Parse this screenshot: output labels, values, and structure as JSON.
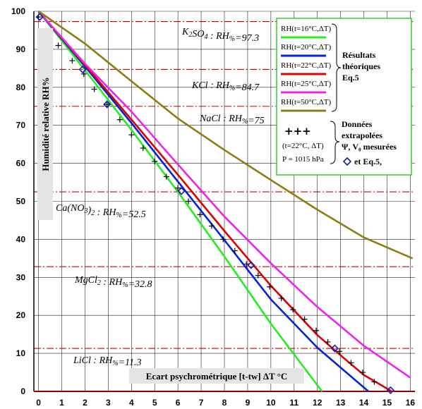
{
  "chart_data": {
    "type": "line",
    "xlabel": "Ecart psychrométrique [t-tw] ΔT °C",
    "ylabel": "Humidité relative RH%",
    "xlim": [
      -0.2,
      16.2
    ],
    "ylim": [
      0,
      100
    ],
    "xticks": [
      "0",
      "1",
      "2",
      "3",
      "4",
      "5",
      "6",
      "7",
      "8",
      "9",
      "10",
      "11",
      "12",
      "13",
      "14",
      "15",
      "16"
    ],
    "yticks": [
      "0",
      "10",
      "20",
      "30",
      "40",
      "50",
      "60",
      "70",
      "80",
      "90",
      "100"
    ],
    "grid": true,
    "references": [
      {
        "label": "K2SO4 : RH%=97.3",
        "value": 97.3
      },
      {
        "label": "KCl : RH%=84.7",
        "value": 84.7
      },
      {
        "label": "NaCl : RH%=75",
        "value": 75
      },
      {
        "label": "Ca(NO3)2 : RH%=52.5",
        "value": 52.5
      },
      {
        "label": "MgCl2 : RH%=32.8",
        "value": 32.8
      },
      {
        "label": "LiCl : RH%=11.3",
        "value": 11.3
      }
    ],
    "reference_color": "#cc0000",
    "series": [
      {
        "name": "RH(t=16°C,ΔT)",
        "color": "#22ee22",
        "x": [
          0,
          2,
          4,
          6,
          8,
          10,
          12.2
        ],
        "y": [
          100,
          84.5,
          68.8,
          52.5,
          35.5,
          17.8,
          0
        ]
      },
      {
        "name": "RH(t=20°C,ΔT)",
        "color": "#0022dd",
        "x": [
          0,
          2,
          4,
          6,
          8,
          10,
          12,
          14.2
        ],
        "y": [
          100,
          85.5,
          70.6,
          55.2,
          39.8,
          24.2,
          11.5,
          0
        ]
      },
      {
        "name": "RH(t=22°C,ΔT)",
        "color": "#dd0000",
        "x": [
          0,
          2,
          4,
          6,
          8,
          10,
          12,
          13,
          14,
          15.2
        ],
        "y": [
          100,
          85.9,
          71.5,
          57,
          42.2,
          27.8,
          14.8,
          9.5,
          4.3,
          0
        ]
      },
      {
        "name": "RH(t=25°C,ΔT)",
        "color": "#ee22ee",
        "x": [
          0,
          2,
          4,
          6,
          8,
          10,
          12,
          14,
          16
        ],
        "y": [
          100,
          86.2,
          73.6,
          59.7,
          46,
          33.7,
          22.2,
          12,
          3.6
        ]
      },
      {
        "name": "RH(t=50°C,ΔT)",
        "color": "#8b7d10",
        "x": [
          0,
          2,
          4,
          6,
          8,
          10,
          12,
          14,
          16.1
        ],
        "y": [
          100,
          91.5,
          81.6,
          71.8,
          63.5,
          55.6,
          47.8,
          40.5,
          35
        ]
      }
    ],
    "extrapolated": {
      "name": "(t=22°C, ΔT)",
      "marker": "+",
      "x": [
        0,
        0.85,
        1.45,
        1.95,
        2.4,
        2.95,
        3.5,
        4,
        4.5,
        5,
        5.5,
        6,
        6.45,
        6.95,
        7.45,
        7.95,
        8.45,
        8.95,
        9.45,
        9.95,
        10.45,
        10.95,
        11.45,
        11.95,
        12.45,
        12.95,
        13.45,
        13.95,
        14.45
      ],
      "y": [
        98.5,
        91,
        87,
        83.5,
        79.5,
        75.5,
        71.5,
        67.5,
        64,
        60.5,
        56.5,
        53.5,
        50,
        46.5,
        43.5,
        40,
        37,
        33.5,
        30.5,
        27.5,
        24.5,
        21.5,
        19,
        16,
        13,
        10.5,
        7.5,
        5,
        2.5
      ]
    },
    "measured": {
      "name": "Ψ, V0 mesurées et Eq.5",
      "marker": "diamond",
      "x": [
        0.05,
        1.9,
        2.95,
        6.15,
        9.15,
        12.75,
        15.15
      ],
      "y": [
        98.5,
        84.7,
        75.5,
        52.7,
        33.2,
        11.3,
        0.3
      ]
    },
    "legend": {
      "labels": [
        "RH(t=16°C,ΔT)",
        "RH(t=20°C,ΔT)",
        "RH(t=22°C,ΔT)",
        "RH(t=25°C,ΔT)",
        "RH(t=50°C,ΔT)"
      ],
      "group1": [
        "Résultats",
        "théoriques",
        "Eq.5"
      ],
      "extrap_marker": "+++",
      "extrap_label": "(t=22°C, ΔT)",
      "pressure": "P = 1015 hPa",
      "group2": [
        "Données",
        "extrapolées",
        "Ψ, V₀ mesurées",
        "et Eq.5,"
      ]
    }
  }
}
